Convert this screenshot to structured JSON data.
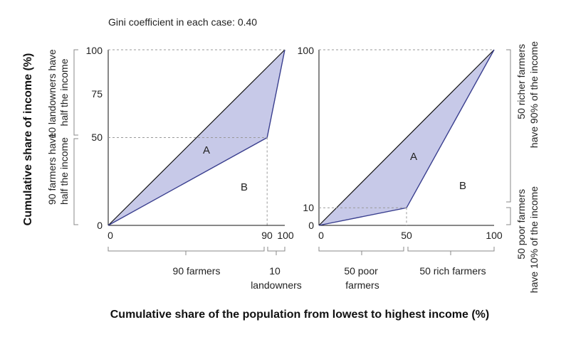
{
  "subtitle": "Gini coefficient in each case: 0.40",
  "ylabel": "Cumulative share of income (%)",
  "xlabel": "Cumulative share of the population from lowest to highest income (%)",
  "colors": {
    "fill": "#c7c9e8",
    "curve": "#3a3f8f",
    "diag": "#111111",
    "guide": "#999999",
    "brace": "#888888"
  },
  "chart_data": [
    {
      "type": "line",
      "x": [
        0,
        90,
        100
      ],
      "y": [
        0,
        50,
        100
      ],
      "xlim": [
        0,
        100
      ],
      "ylim": [
        0,
        100
      ],
      "xticks": [
        "0",
        "90",
        "100"
      ],
      "yticks": [
        "0",
        "50",
        "75",
        "100"
      ],
      "region_labels": [
        "A",
        "B"
      ],
      "left_braces": [
        "10 landowners have half the income",
        "90 farmers have half the income"
      ],
      "bottom_braces": [
        "90 farmers",
        "10 landowners"
      ]
    },
    {
      "type": "line",
      "x": [
        0,
        50,
        100
      ],
      "y": [
        0,
        10,
        100
      ],
      "xlim": [
        0,
        100
      ],
      "ylim": [
        0,
        100
      ],
      "xticks": [
        "0",
        "50",
        "100"
      ],
      "yticks": [
        "0",
        "10",
        "100"
      ],
      "region_labels": [
        "A",
        "B"
      ],
      "right_braces": [
        "50 richer farmers have 90% of the income",
        "50 poor farmers have 10% of the income"
      ],
      "bottom_braces": [
        "50 poor farmers",
        "50 rich farmers"
      ]
    }
  ]
}
